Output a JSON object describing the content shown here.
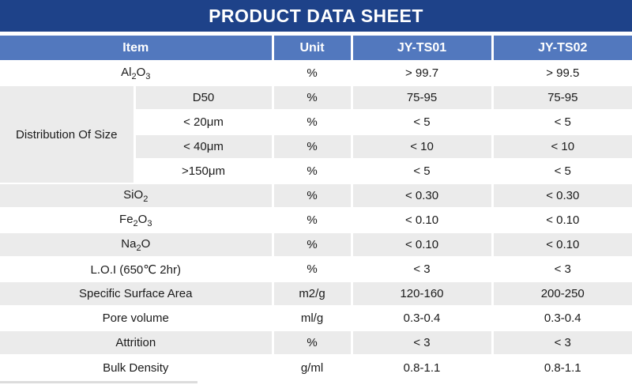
{
  "title": "PRODUCT DATA SHEET",
  "colors": {
    "title_bar": "#1E4289",
    "header_row": "#5278BE",
    "shaded_row": "#EBEBEB",
    "header_text": "#FFFFFF",
    "body_text": "#1A1A1A"
  },
  "table": {
    "columns": [
      "Item",
      "Unit",
      "JY-TS01",
      "JY-TS02"
    ],
    "group_label": "Distribution Of Size",
    "rows": [
      {
        "item": "Al<sub>2</sub>O<sub>3</sub>",
        "unit": "%",
        "ts01": "> 99.7",
        "ts02": "> 99.5"
      },
      {
        "item": "D50",
        "unit": "%",
        "ts01": "75-95",
        "ts02": "75-95"
      },
      {
        "item": "< 20μm",
        "unit": "%",
        "ts01": "< 5",
        "ts02": "< 5"
      },
      {
        "item": "< 40μm",
        "unit": "%",
        "ts01": "< 10",
        "ts02": "< 10"
      },
      {
        "item": ">150μm",
        "unit": "%",
        "ts01": "< 5",
        "ts02": "< 5"
      },
      {
        "item": "SiO<sub>2</sub>",
        "unit": "%",
        "ts01": "< 0.30",
        "ts02": "< 0.30"
      },
      {
        "item": "Fe<sub>2</sub>O<sub>3</sub>",
        "unit": "%",
        "ts01": "< 0.10",
        "ts02": "< 0.10"
      },
      {
        "item": "Na<sub>2</sub>O",
        "unit": "%",
        "ts01": "< 0.10",
        "ts02": "< 0.10"
      },
      {
        "item": "L.O.I (650℃ 2hr)",
        "unit": "%",
        "ts01": "< 3",
        "ts02": "< 3"
      },
      {
        "item": "Specific Surface Area",
        "unit": "m2/g",
        "ts01": "120-160",
        "ts02": "200-250"
      },
      {
        "item": "Pore volume",
        "unit": "ml/g",
        "ts01": "0.3-0.4",
        "ts02": "0.3-0.4"
      },
      {
        "item": "Attrition",
        "unit": "%",
        "ts01": "< 3",
        "ts02": "< 3"
      },
      {
        "item": "Bulk Density",
        "unit": "g/ml",
        "ts01": "0.8-1.1",
        "ts02": "0.8-1.1"
      }
    ]
  }
}
